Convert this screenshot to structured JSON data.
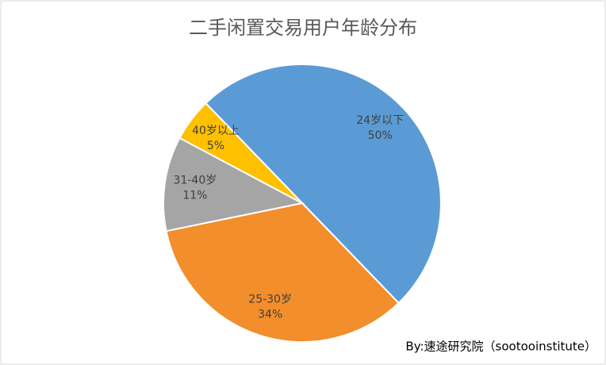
{
  "chart_data": {
    "type": "pie",
    "title": "二手闲置交易用户年龄分布",
    "categories": [
      "24岁以下",
      "25-30岁",
      "31-40岁",
      "40岁以上"
    ],
    "values": [
      50,
      34,
      11,
      5
    ],
    "value_labels": [
      "50%",
      "34%",
      "11%",
      "5%"
    ],
    "colors": [
      "#5b9bd5",
      "#f28e2b",
      "#a5a5a5",
      "#ffc000"
    ],
    "source": "By:速途研究院（sootooinstitute）"
  }
}
